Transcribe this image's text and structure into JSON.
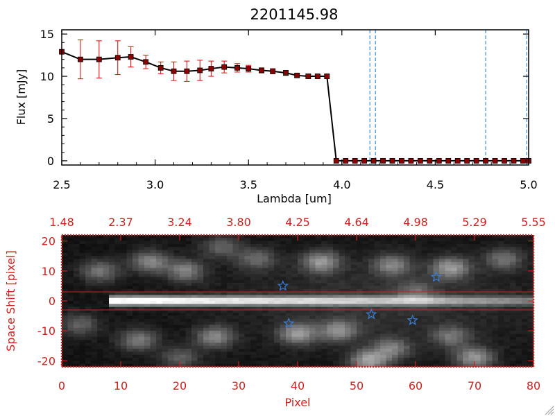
{
  "chart_data": [
    {
      "type": "line",
      "title": "2201145.98",
      "xlabel": "Lambda [um]",
      "ylabel": "Flux [mJy]",
      "xlim": [
        2.5,
        5.0
      ],
      "ylim": [
        -0.5,
        15.5
      ],
      "xticks": [
        "2.5",
        "3.0",
        "3.5",
        "4.0",
        "4.5",
        "5.0"
      ],
      "xtick_values": [
        2.5,
        3.0,
        3.5,
        4.0,
        4.5,
        5.0
      ],
      "yticks": [
        "0",
        "5",
        "10",
        "15"
      ],
      "ytick_values": [
        0,
        5,
        10,
        15
      ],
      "series": [
        {
          "x": [
            2.5,
            2.6,
            2.7,
            2.8,
            2.87,
            2.95,
            3.03,
            3.1,
            3.17,
            3.24,
            3.3,
            3.37,
            3.44,
            3.5,
            3.57,
            3.63,
            3.7,
            3.76,
            3.82,
            3.87,
            3.92,
            3.97,
            4.02,
            4.07,
            4.12,
            4.17,
            4.22,
            4.27,
            4.32,
            4.37,
            4.42,
            4.47,
            4.52,
            4.57,
            4.62,
            4.67,
            4.72,
            4.77,
            4.82,
            4.87,
            4.92,
            4.97,
            5.0
          ],
          "y": [
            12.9,
            12.0,
            12.0,
            12.2,
            12.3,
            11.7,
            11.0,
            10.6,
            10.6,
            10.7,
            10.9,
            11.1,
            11.0,
            10.9,
            10.7,
            10.6,
            10.4,
            10.1,
            10.0,
            10.0,
            10.0,
            0.0,
            0.0,
            0.0,
            0.0,
            0.0,
            0.0,
            0.0,
            0.0,
            0.0,
            0.0,
            0.0,
            0.0,
            0.0,
            0.0,
            0.0,
            0.0,
            0.0,
            0.0,
            0.0,
            0.0,
            0.0,
            0.0
          ],
          "yerr": [
            0,
            2.3,
            2.2,
            2.0,
            1.2,
            0.8,
            0.7,
            1.1,
            1.2,
            1.2,
            0.9,
            0.7,
            0.5,
            0.4,
            0.3,
            0.3,
            0.3,
            0.2,
            0.2,
            0.2,
            0.2,
            0,
            0,
            0,
            0,
            0,
            0,
            0,
            0,
            0,
            0,
            0,
            0,
            0,
            0,
            0,
            0,
            0,
            0,
            0,
            0,
            0,
            0
          ],
          "color": "#000000",
          "marker_color": "#8b0000",
          "errorbar_color": "#e00000"
        }
      ],
      "vlines": [
        4.15,
        4.18,
        4.77,
        4.99
      ],
      "vline_color": "#3a8fd8",
      "grid": false
    },
    {
      "type": "heatmap",
      "xlabel": "Pixel",
      "ylabel": "Space Shift [pixel]",
      "xlim": [
        0,
        80
      ],
      "ylim": [
        -22,
        22
      ],
      "xticks": [
        "0",
        "10",
        "20",
        "30",
        "40",
        "50",
        "60",
        "70",
        "80"
      ],
      "xtick_values": [
        0,
        10,
        20,
        30,
        40,
        50,
        60,
        70,
        80
      ],
      "yticks": [
        "-20",
        "-10",
        "0",
        "10",
        "20"
      ],
      "ytick_values": [
        -20,
        -10,
        0,
        10,
        20
      ],
      "top_ticks": [
        "1.48",
        "2.37",
        "3.24",
        "3.80",
        "4.25",
        "4.64",
        "4.98",
        "5.29",
        "5.55"
      ],
      "hlines": [
        3,
        -3
      ],
      "hline_color": "#d02020",
      "axis_color": "#d02020",
      "stars": [
        {
          "x": 37.5,
          "y": 5
        },
        {
          "x": 63.5,
          "y": 8
        },
        {
          "x": 38.5,
          "y": -7.5
        },
        {
          "x": 52.5,
          "y": -4.5
        },
        {
          "x": 59.5,
          "y": -6.5
        }
      ],
      "star_color": "#3a7fd8",
      "trace": {
        "x_start": 8,
        "x_end": 80,
        "y": 0
      },
      "blobs": [
        {
          "x": 15,
          "y": 13,
          "v": 0.45
        },
        {
          "x": 6.5,
          "y": 10,
          "v": 0.38
        },
        {
          "x": 21,
          "y": 10,
          "v": 0.42
        },
        {
          "x": 33,
          "y": 14,
          "v": 0.33
        },
        {
          "x": 44,
          "y": 13,
          "v": 0.5
        },
        {
          "x": 56,
          "y": 12,
          "v": 0.4
        },
        {
          "x": 66,
          "y": 11,
          "v": 0.5
        },
        {
          "x": 75,
          "y": 14,
          "v": 0.35
        },
        {
          "x": 27,
          "y": 18,
          "v": 0.3
        },
        {
          "x": 13,
          "y": -13,
          "v": 0.4
        },
        {
          "x": 26,
          "y": -12,
          "v": 0.45
        },
        {
          "x": 40,
          "y": -11,
          "v": 0.5
        },
        {
          "x": 47,
          "y": -10,
          "v": 0.45
        },
        {
          "x": 56,
          "y": -16,
          "v": 0.4
        },
        {
          "x": 66,
          "y": -12,
          "v": 0.35
        },
        {
          "x": 52,
          "y": -20,
          "v": 0.55
        },
        {
          "x": 70,
          "y": -19,
          "v": 0.5
        },
        {
          "x": 20,
          "y": -19,
          "v": 0.3
        },
        {
          "x": 60,
          "y": 3,
          "v": 0.25
        },
        {
          "x": 3,
          "y": -8,
          "v": 0.3
        }
      ]
    }
  ]
}
